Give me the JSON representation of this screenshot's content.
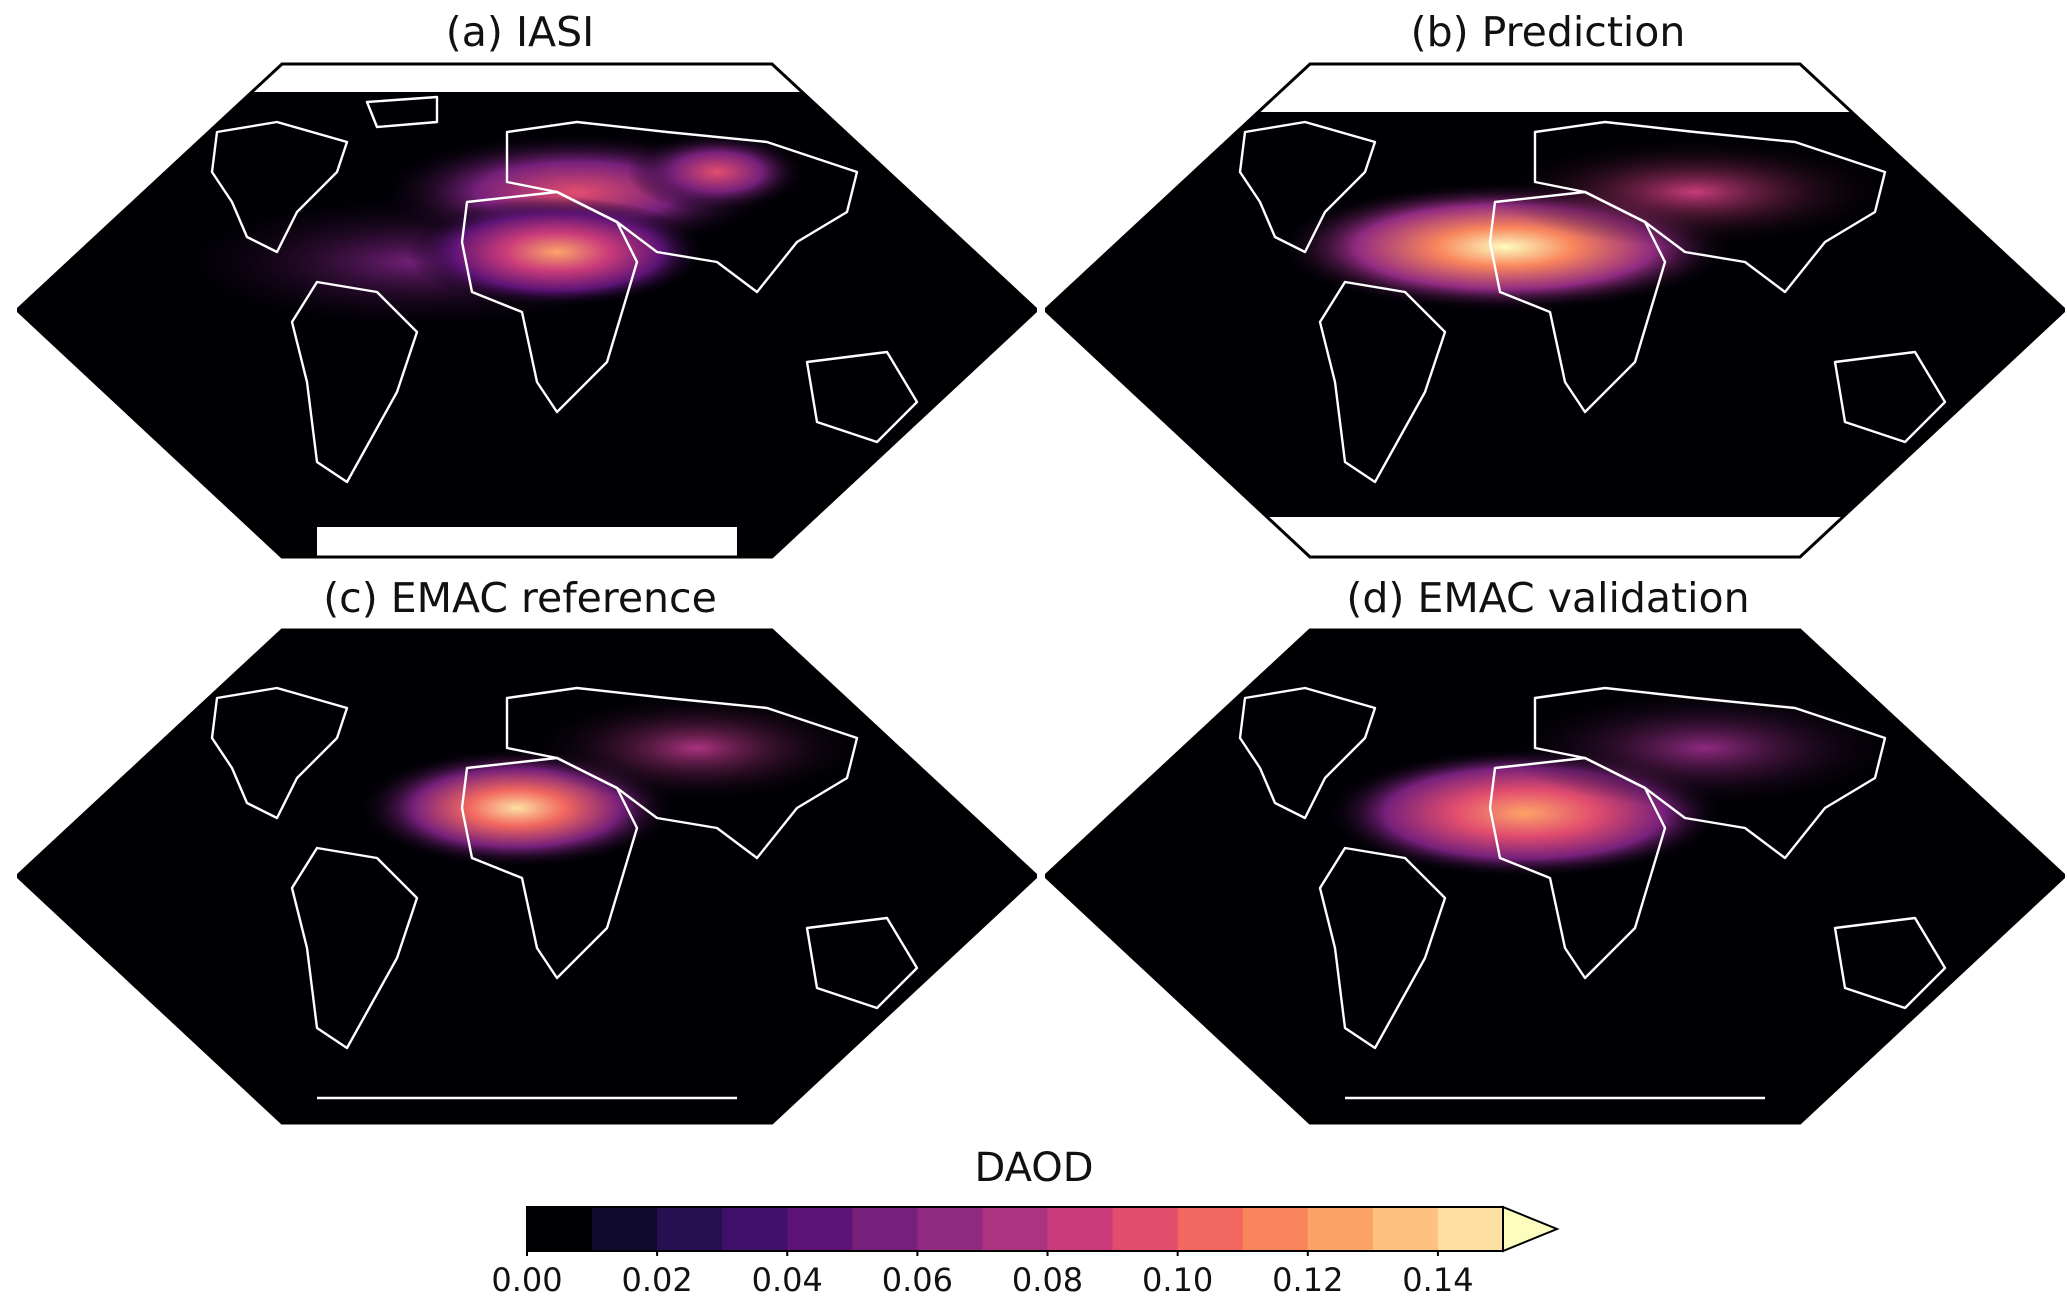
{
  "panels": [
    {
      "title": "(a) IASI",
      "key": "a"
    },
    {
      "title": "(b) Prediction",
      "key": "b"
    },
    {
      "title": "(c) EMAC reference",
      "key": "c"
    },
    {
      "title": "(d) EMAC validation",
      "key": "d"
    }
  ],
  "colorbar": {
    "label": "DAOD",
    "ticks": [
      "0.00",
      "0.02",
      "0.04",
      "0.06",
      "0.08",
      "0.10",
      "0.12",
      "0.14"
    ],
    "levels": [
      0.0,
      0.01,
      0.02,
      0.03,
      0.04,
      0.05,
      0.06,
      0.07,
      0.08,
      0.09,
      0.1,
      0.11,
      0.12,
      0.13,
      0.14,
      0.15
    ],
    "colors": [
      "#000004",
      "#0f0a2e",
      "#261052",
      "#41106b",
      "#5c1375",
      "#76207b",
      "#902a81",
      "#ac3380",
      "#c93b7a",
      "#e24d6e",
      "#f2675f",
      "#f9855c",
      "#fca468",
      "#fdc280",
      "#fde0a2",
      "#fcfdbf"
    ],
    "extend": "max",
    "colormap": "magma"
  }
}
